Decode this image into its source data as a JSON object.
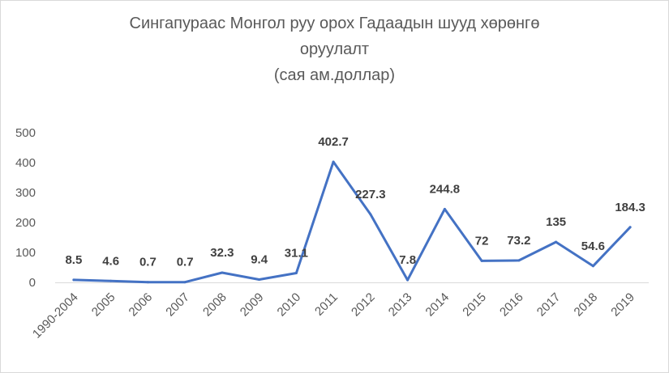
{
  "chart_data": {
    "type": "line",
    "title_lines": [
      "Сингапураас Монгол руу орох Гадаадын шууд хөрөнгө",
      "оруулалт",
      "(сая ам.доллар)"
    ],
    "xlabel": "",
    "ylabel": "",
    "categories": [
      "1990-2004",
      "2005",
      "2006",
      "2007",
      "2008",
      "2009",
      "2010",
      "2011",
      "2012",
      "2013",
      "2014",
      "2015",
      "2016",
      "2017",
      "2018",
      "2019"
    ],
    "series": [
      {
        "values": [
          8.5,
          4.6,
          0.7,
          0.7,
          32.3,
          9.4,
          31.1,
          402.7,
          227.3,
          7.8,
          244.8,
          72,
          73.2,
          135,
          54.6,
          184.3
        ]
      }
    ],
    "data_labels": [
      "8.5",
      "4.6",
      "0.7",
      "0.7",
      "32.3",
      "9.4",
      "31.1",
      "402.7",
      "227.3",
      "7.8",
      "244.8",
      "72",
      "73.2",
      "135",
      "54.6",
      "184.3"
    ],
    "y_ticks": [
      "0",
      "100",
      "200",
      "300",
      "400",
      "500"
    ],
    "ylim": [
      0,
      500
    ],
    "grid": false,
    "legend": "none",
    "line_color": "#4472c4"
  }
}
